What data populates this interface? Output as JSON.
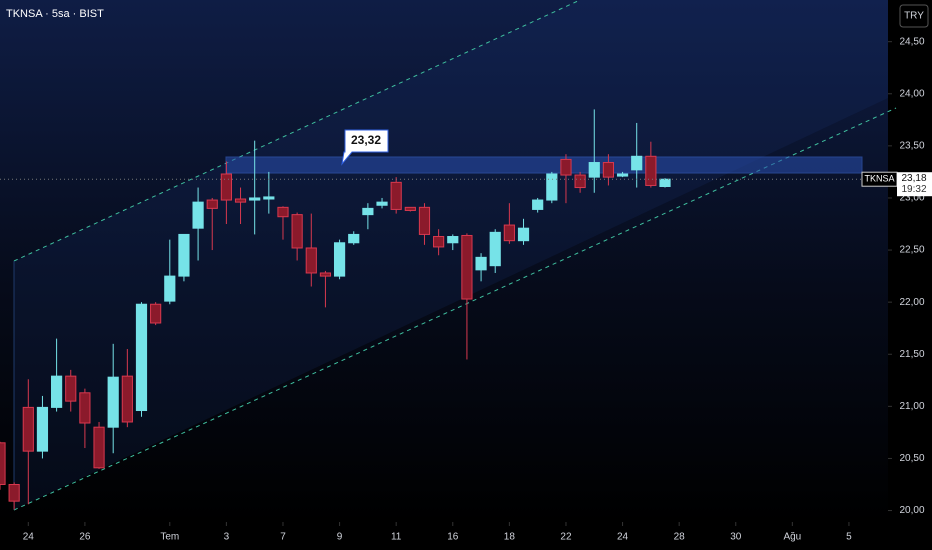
{
  "chart_data": {
    "type": "candlestick",
    "title": "TKNSA · 5sa · BIST",
    "currency": "TRY",
    "symbol": "TKNSA",
    "last_price": {
      "value": 23.18,
      "label": "23,18"
    },
    "countdown": "19:32",
    "annotation": "23,32",
    "up_color": "#76e3e8",
    "down_color": "#8b1a2b",
    "down_border": "#d8394f",
    "open": [
      20.65,
      20.25,
      20.99,
      20.57,
      20.99,
      21.29,
      21.13,
      20.8,
      20.8,
      21.29,
      20.96,
      21.98,
      22.01,
      22.25,
      22.71,
      22.98,
      23.23,
      22.99,
      22.98,
      22.99,
      22.91,
      22.84,
      22.52,
      22.28,
      22.25,
      22.57,
      22.84,
      22.93,
      23.15,
      22.91,
      22.91,
      22.63,
      22.57,
      22.64,
      22.31,
      22.35,
      22.74,
      22.59,
      22.89,
      22.98,
      23.37,
      23.22,
      23.2,
      23.34,
      23.21,
      23.27,
      23.4,
      23.11
    ],
    "high": [
      20.66,
      20.27,
      21.26,
      21.1,
      21.65,
      21.35,
      21.17,
      20.85,
      21.6,
      21.55,
      22.0,
      22.0,
      22.6,
      22.65,
      23.1,
      23.0,
      23.35,
      23.1,
      23.55,
      23.25,
      22.92,
      22.86,
      22.85,
      22.3,
      22.6,
      22.68,
      22.95,
      23.0,
      23.2,
      22.9,
      22.95,
      22.7,
      22.65,
      22.66,
      22.47,
      22.7,
      22.95,
      22.8,
      23.0,
      23.25,
      23.42,
      23.25,
      23.85,
      23.42,
      23.25,
      23.72,
      23.54,
      23.19
    ],
    "low": [
      20.2,
      20.01,
      20.06,
      20.5,
      20.95,
      20.95,
      20.6,
      20.4,
      20.55,
      20.8,
      20.9,
      21.78,
      21.98,
      22.2,
      22.4,
      22.5,
      22.75,
      22.75,
      22.65,
      22.85,
      22.6,
      22.4,
      22.15,
      21.95,
      22.22,
      22.55,
      22.7,
      22.9,
      22.85,
      22.87,
      22.55,
      22.45,
      22.5,
      21.45,
      22.2,
      22.28,
      22.56,
      22.55,
      22.86,
      22.95,
      22.95,
      23.05,
      23.05,
      23.12,
      23.2,
      23.1,
      23.1,
      23.1
    ],
    "close": [
      20.25,
      20.09,
      20.57,
      20.99,
      21.29,
      21.05,
      20.84,
      20.41,
      21.28,
      20.85,
      21.98,
      21.8,
      22.25,
      22.65,
      22.96,
      22.9,
      22.98,
      22.96,
      23.0,
      23.01,
      22.82,
      22.52,
      22.28,
      22.25,
      22.57,
      22.65,
      22.9,
      22.96,
      22.89,
      22.88,
      22.65,
      22.53,
      22.63,
      22.03,
      22.43,
      22.67,
      22.59,
      22.71,
      22.98,
      23.23,
      23.22,
      23.1,
      23.34,
      23.2,
      23.23,
      23.4,
      23.12,
      23.18
    ],
    "xlim": [
      0,
      62.76
    ],
    "xticks": [
      {
        "value": 2,
        "label": "24"
      },
      {
        "value": 6,
        "label": "26"
      },
      {
        "value": 12,
        "label": "Tem"
      },
      {
        "value": 16,
        "label": "3"
      },
      {
        "value": 20,
        "label": "7"
      },
      {
        "value": 24,
        "label": "9"
      },
      {
        "value": 28,
        "label": "11"
      },
      {
        "value": 32,
        "label": "16"
      },
      {
        "value": 36,
        "label": "18"
      },
      {
        "value": 40,
        "label": "22"
      },
      {
        "value": 44,
        "label": "24"
      },
      {
        "value": 48,
        "label": "28"
      },
      {
        "value": 52,
        "label": "30"
      },
      {
        "value": 56,
        "label": "Ağu"
      },
      {
        "value": 60,
        "label": "5"
      }
    ],
    "ylim": [
      19.89,
      24.9
    ],
    "yticks": [
      {
        "value": 20,
        "label": "20,00"
      },
      {
        "value": 20.5,
        "label": "20,50"
      },
      {
        "value": 21,
        "label": "21,00"
      },
      {
        "value": 21.5,
        "label": "21,50"
      },
      {
        "value": 22,
        "label": "22,00"
      },
      {
        "value": 22.5,
        "label": "22,50"
      },
      {
        "value": 23,
        "label": "23,00"
      },
      {
        "value": 23.5,
        "label": "23,50"
      },
      {
        "value": 24,
        "label": "24,00"
      },
      {
        "value": 24.5,
        "label": "24,50"
      }
    ]
  }
}
